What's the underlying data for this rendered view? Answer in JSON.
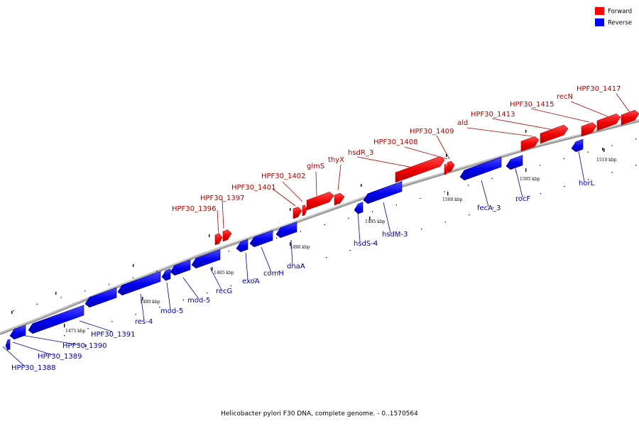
{
  "caption": "Helicobacter pylori F30 DNA, complete genome. - 0..1570564",
  "legend": [
    {
      "label": "Forward",
      "color": "#ff0000"
    },
    {
      "label": "Reverse",
      "color": "#0000ff"
    }
  ],
  "colors": {
    "forward": "#ff0000",
    "forward_dark": "#b00000",
    "forward_label": "#b00000",
    "reverse": "#0000ff",
    "reverse_dark": "#0000a0",
    "reverse_label": "#0000a0",
    "backbone": "#9a9a9a"
  },
  "scale_labels": [
    "1475 kbp",
    "1480 kbp",
    "1485 kbp",
    "1490 kbp",
    "1495 kbp",
    "1500 kbp",
    "1505 kbp",
    "1510 kbp"
  ],
  "genes": [
    {
      "label": "HPF30_1388",
      "strand": "reverse"
    },
    {
      "label": "HPF30_1389",
      "strand": "reverse"
    },
    {
      "label": "HPF30_1390",
      "strand": "reverse"
    },
    {
      "label": "HPF30_1391",
      "strand": "reverse"
    },
    {
      "label": "res-4",
      "strand": "reverse"
    },
    {
      "label": "mod-5",
      "strand": "reverse"
    },
    {
      "label": "mod-5",
      "strand": "reverse"
    },
    {
      "label": "recG",
      "strand": "reverse"
    },
    {
      "label": "exoA",
      "strand": "reverse"
    },
    {
      "label": "comH",
      "strand": "reverse"
    },
    {
      "label": "dnaA",
      "strand": "reverse"
    },
    {
      "label": "hsdS-4",
      "strand": "reverse"
    },
    {
      "label": "hsdM-3",
      "strand": "reverse"
    },
    {
      "label": "fecA_3",
      "strand": "reverse"
    },
    {
      "label": "rocF",
      "strand": "reverse"
    },
    {
      "label": "horL",
      "strand": "reverse"
    },
    {
      "label": "HPF30_1396",
      "strand": "forward"
    },
    {
      "label": "HPF30_1397",
      "strand": "forward"
    },
    {
      "label": "HPF30_1401",
      "strand": "forward"
    },
    {
      "label": "HPF30_1402",
      "strand": "forward"
    },
    {
      "label": "glmS",
      "strand": "forward"
    },
    {
      "label": "thyX",
      "strand": "forward"
    },
    {
      "label": "hsdR_3",
      "strand": "forward"
    },
    {
      "label": "HPF30_1408",
      "strand": "forward"
    },
    {
      "label": "HPF30_1409",
      "strand": "forward"
    },
    {
      "label": "ald",
      "strand": "forward"
    },
    {
      "label": "HPF30_1413",
      "strand": "forward"
    },
    {
      "label": "HPF30_1415",
      "strand": "forward"
    },
    {
      "label": "recN",
      "strand": "forward"
    },
    {
      "label": "HPF30_1417",
      "strand": "forward"
    }
  ]
}
